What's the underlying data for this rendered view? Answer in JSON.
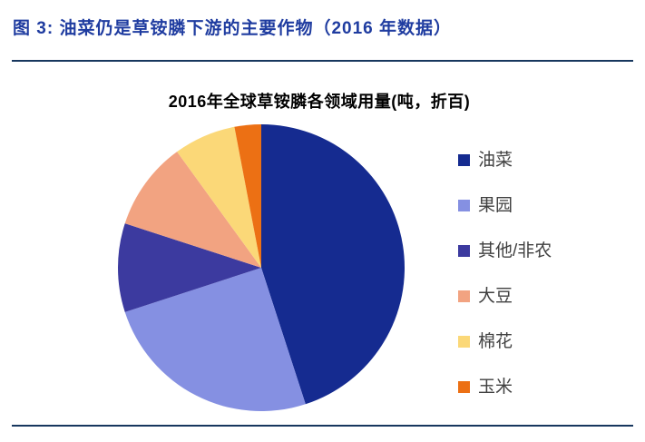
{
  "figure": {
    "title": "图 3: 油菜仍是草铵膦下游的主要作物（2016 年数据）",
    "title_color": "#1F3CA0",
    "divider_color": "#17375E"
  },
  "chart_data": {
    "type": "pie",
    "title": "2016年全球草铵膦各领域用量(吨，折百)",
    "categories": [
      "油菜",
      "果园",
      "其他/非农",
      "大豆",
      "棉花",
      "玉米"
    ],
    "values_percent": [
      45,
      25,
      10,
      10,
      7,
      3
    ],
    "colors": [
      "#152B90",
      "#8590E2",
      "#3C3A9F",
      "#F2A381",
      "#FBD878",
      "#EC7014"
    ],
    "legend_position": "right",
    "legend_text_color": "#404040",
    "start_angle_deg": 0,
    "direction": "clockwise",
    "data_labels": "none"
  }
}
